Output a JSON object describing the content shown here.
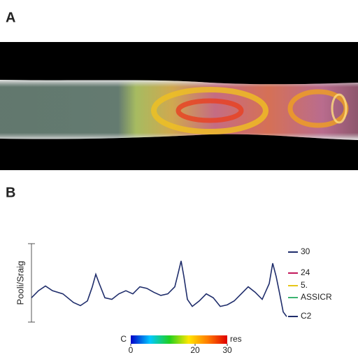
{
  "panel_a": {
    "label": "A"
  },
  "chart_data": {
    "type": "line",
    "panel_label": "B",
    "y_label": "Pooli/Sraig",
    "x": [
      0,
      1,
      2,
      3,
      4.5,
      6,
      7,
      8,
      8.7,
      9.2,
      9.7,
      10.5,
      11.5,
      12.5,
      13.5,
      14.5,
      15.5,
      16.5,
      17.5,
      18.5,
      19.5,
      20.5,
      21,
      21.4,
      21.8,
      22.3,
      23,
      24,
      25,
      26,
      27,
      28,
      29,
      30,
      31,
      32,
      33,
      34,
      34.5,
      35,
      35.5,
      36,
      36.5
    ],
    "values": [
      0.31,
      0.4,
      0.46,
      0.4,
      0.36,
      0.25,
      0.21,
      0.27,
      0.45,
      0.61,
      0.49,
      0.31,
      0.29,
      0.36,
      0.4,
      0.36,
      0.45,
      0.43,
      0.38,
      0.34,
      0.36,
      0.45,
      0.63,
      0.78,
      0.58,
      0.29,
      0.2,
      0.27,
      0.36,
      0.31,
      0.2,
      0.22,
      0.27,
      0.36,
      0.45,
      0.38,
      0.29,
      0.49,
      0.75,
      0.58,
      0.36,
      0.13,
      0.07
    ],
    "color": "#1f2d6b",
    "xlim": [
      0,
      36.5
    ],
    "ylim": [
      0,
      1
    ],
    "legend": [
      {
        "label": "30",
        "color": "#1f2d6b"
      },
      {
        "label": "24",
        "color": "#c2185b"
      },
      {
        "label": "5.",
        "color": "#e6c619"
      },
      {
        "label": "ASSICR",
        "color": "#3cb371"
      },
      {
        "label": "C2",
        "color": "#1f2d6b"
      }
    ],
    "colorbar": {
      "left_label": "C",
      "right_label": "res",
      "clim": [
        0,
        30
      ],
      "ticks": [
        0,
        20,
        30
      ],
      "colors": [
        "#0000c8",
        "#00c8ff",
        "#20d020",
        "#ffe600",
        "#ff7a00",
        "#e00000"
      ]
    }
  }
}
